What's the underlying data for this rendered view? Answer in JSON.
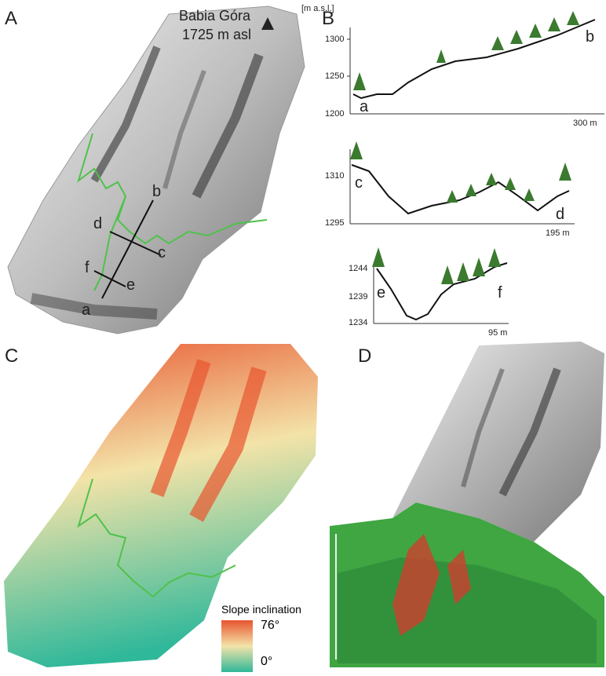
{
  "panel_labels": {
    "A": "A",
    "B": "B",
    "C": "C",
    "D": "D"
  },
  "panel_a": {
    "peak_name": "Babia Góra",
    "peak_elev": "1725 m asl",
    "points": [
      "a",
      "b",
      "c",
      "d",
      "e",
      "f"
    ]
  },
  "panel_b": {
    "unit": "[m a.s.l.]",
    "profile_ab": {
      "start": "a",
      "end": "b",
      "yticks": [
        "1300",
        "1250",
        "1200"
      ],
      "distance": "300 m"
    },
    "profile_cd": {
      "start": "c",
      "end": "d",
      "yticks": [
        "1310",
        "1295"
      ],
      "distance": "195 m"
    },
    "profile_ef": {
      "start": "e",
      "end": "f",
      "yticks": [
        "1244",
        "1239",
        "1234"
      ],
      "distance": "95 m"
    }
  },
  "panel_c": {
    "legend_title": "Slope inclination",
    "legend_max": "76°",
    "legend_min": "0°",
    "colors": {
      "high": "#e8552f",
      "mid": "#f3e3a8",
      "low": "#2fb89a"
    }
  },
  "colors": {
    "boundary": "#4fc24a",
    "tree": "#3b7a2f",
    "relief": "#8a8a8a"
  }
}
